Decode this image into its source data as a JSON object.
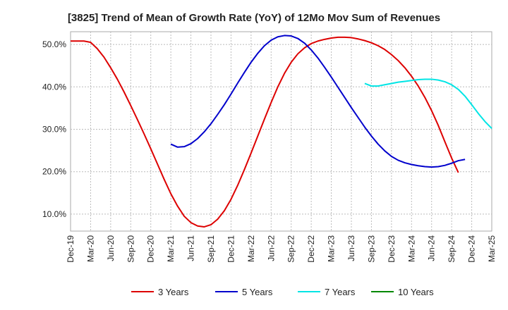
{
  "chart_data": {
    "type": "line",
    "title": "[3825]  Trend of Mean of Growth Rate (YoY) of 12Mo Mov Sum of Revenues",
    "xlabel": "",
    "ylabel": "",
    "x_tick_labels": [
      "Dec-19",
      "Mar-20",
      "Jun-20",
      "Sep-20",
      "Dec-20",
      "Mar-21",
      "Jun-21",
      "Sep-21",
      "Dec-21",
      "Mar-22",
      "Jun-22",
      "Sep-22",
      "Dec-22",
      "Mar-23",
      "Jun-23",
      "Sep-23",
      "Dec-23",
      "Mar-24",
      "Jun-24",
      "Sep-24",
      "Dec-24",
      "Mar-25"
    ],
    "y_ticks": [
      10,
      20,
      30,
      40,
      50
    ],
    "y_tick_labels": [
      "10.0%",
      "20.0%",
      "30.0%",
      "40.0%",
      "50.0%"
    ],
    "ylim": [
      6,
      53
    ],
    "grid": true,
    "legend_position": "bottom",
    "series": [
      {
        "name": "3 Years",
        "color": "#dd0000",
        "points": [
          [
            0,
            50.8
          ],
          [
            1,
            50.8
          ],
          [
            2,
            50.8
          ],
          [
            3,
            50.5
          ],
          [
            4,
            49.0
          ],
          [
            5,
            47.0
          ],
          [
            6,
            44.5
          ],
          [
            7,
            41.8
          ],
          [
            8,
            38.8
          ],
          [
            9,
            35.6
          ],
          [
            10,
            32.3
          ],
          [
            11,
            28.9
          ],
          [
            12,
            25.4
          ],
          [
            13,
            21.8
          ],
          [
            14,
            18.2
          ],
          [
            15,
            14.8
          ],
          [
            16,
            11.9
          ],
          [
            17,
            9.5
          ],
          [
            18,
            8.0
          ],
          [
            19,
            7.2
          ],
          [
            20,
            7.0
          ],
          [
            21,
            7.5
          ],
          [
            22,
            8.8
          ],
          [
            23,
            10.8
          ],
          [
            24,
            13.5
          ],
          [
            25,
            16.8
          ],
          [
            26,
            20.5
          ],
          [
            27,
            24.4
          ],
          [
            28,
            28.4
          ],
          [
            29,
            32.4
          ],
          [
            30,
            36.3
          ],
          [
            31,
            40.0
          ],
          [
            32,
            43.2
          ],
          [
            33,
            45.8
          ],
          [
            34,
            47.8
          ],
          [
            35,
            49.2
          ],
          [
            36,
            50.2
          ],
          [
            37,
            50.8
          ],
          [
            38,
            51.2
          ],
          [
            39,
            51.5
          ],
          [
            40,
            51.7
          ],
          [
            41,
            51.7
          ],
          [
            42,
            51.6
          ],
          [
            43,
            51.3
          ],
          [
            44,
            50.9
          ],
          [
            45,
            50.4
          ],
          [
            46,
            49.7
          ],
          [
            47,
            48.8
          ],
          [
            48,
            47.6
          ],
          [
            49,
            46.2
          ],
          [
            50,
            44.5
          ],
          [
            51,
            42.5
          ],
          [
            52,
            40.2
          ],
          [
            53,
            37.5
          ],
          [
            54,
            34.4
          ],
          [
            55,
            30.9
          ],
          [
            56,
            27.0
          ],
          [
            57,
            23.2
          ],
          [
            58,
            19.8
          ]
        ]
      },
      {
        "name": "5 Years",
        "color": "#0000cc",
        "points": [
          [
            15,
            26.5
          ],
          [
            16,
            25.8
          ],
          [
            17,
            25.9
          ],
          [
            18,
            26.6
          ],
          [
            19,
            27.8
          ],
          [
            20,
            29.4
          ],
          [
            21,
            31.3
          ],
          [
            22,
            33.5
          ],
          [
            23,
            35.8
          ],
          [
            24,
            38.3
          ],
          [
            25,
            40.9
          ],
          [
            26,
            43.4
          ],
          [
            27,
            45.8
          ],
          [
            28,
            47.9
          ],
          [
            29,
            49.7
          ],
          [
            30,
            51.0
          ],
          [
            31,
            51.8
          ],
          [
            32,
            52.1
          ],
          [
            33,
            52.0
          ],
          [
            34,
            51.4
          ],
          [
            35,
            50.3
          ],
          [
            36,
            48.7
          ],
          [
            37,
            46.8
          ],
          [
            38,
            44.6
          ],
          [
            39,
            42.3
          ],
          [
            40,
            39.9
          ],
          [
            41,
            37.5
          ],
          [
            42,
            35.1
          ],
          [
            43,
            32.8
          ],
          [
            44,
            30.5
          ],
          [
            45,
            28.4
          ],
          [
            46,
            26.5
          ],
          [
            47,
            24.9
          ],
          [
            48,
            23.6
          ],
          [
            49,
            22.7
          ],
          [
            50,
            22.1
          ],
          [
            51,
            21.7
          ],
          [
            52,
            21.4
          ],
          [
            53,
            21.2
          ],
          [
            54,
            21.1
          ],
          [
            55,
            21.2
          ],
          [
            56,
            21.5
          ],
          [
            57,
            22.0
          ],
          [
            58,
            22.6
          ],
          [
            59,
            22.9
          ]
        ]
      },
      {
        "name": "7 Years",
        "color": "#00e5e5",
        "points": [
          [
            44,
            40.8
          ],
          [
            45,
            40.2
          ],
          [
            46,
            40.2
          ],
          [
            47,
            40.5
          ],
          [
            48,
            40.8
          ],
          [
            49,
            41.1
          ],
          [
            50,
            41.3
          ],
          [
            51,
            41.5
          ],
          [
            52,
            41.7
          ],
          [
            53,
            41.8
          ],
          [
            54,
            41.8
          ],
          [
            55,
            41.6
          ],
          [
            56,
            41.2
          ],
          [
            57,
            40.5
          ],
          [
            58,
            39.4
          ],
          [
            59,
            37.8
          ],
          [
            60,
            35.8
          ],
          [
            61,
            33.7
          ],
          [
            62,
            31.8
          ],
          [
            63,
            30.2
          ]
        ]
      },
      {
        "name": "10 Years",
        "color": "#008800",
        "points": []
      }
    ]
  }
}
